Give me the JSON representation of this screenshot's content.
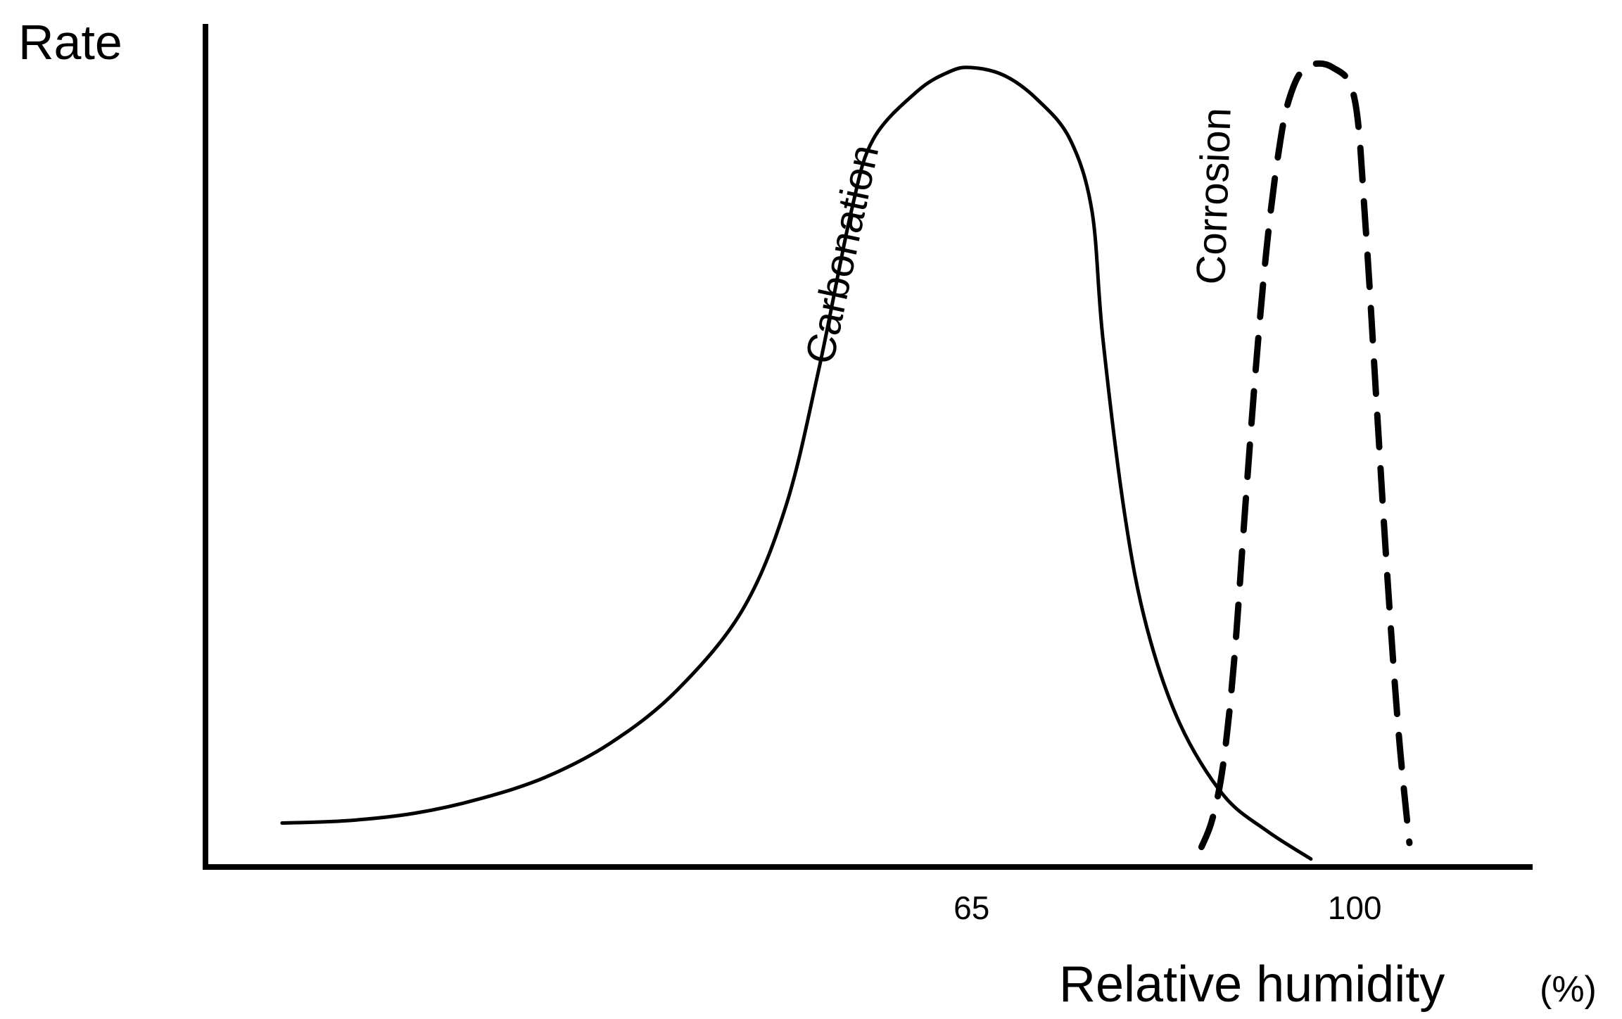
{
  "chart_data": {
    "type": "line",
    "title": "",
    "ylabel": "Rate",
    "xlabel": "Relative humidity",
    "xunit": "(%)",
    "xticks": [
      {
        "value": 65,
        "label": "65"
      },
      {
        "value": 100,
        "label": "100"
      }
    ],
    "xlim": [
      -5,
      116
    ],
    "ylim": [
      0,
      1
    ],
    "grid": false,
    "legend": "none",
    "series": [
      {
        "name": "Carbonation",
        "style": "solid",
        "color": "#000000",
        "points": [
          [
            2,
            0.055
          ],
          [
            8,
            0.058
          ],
          [
            14,
            0.067
          ],
          [
            20,
            0.085
          ],
          [
            26,
            0.112
          ],
          [
            32,
            0.155
          ],
          [
            38,
            0.22
          ],
          [
            44,
            0.32
          ],
          [
            48,
            0.45
          ],
          [
            51,
            0.62
          ],
          [
            54,
            0.82
          ],
          [
            56,
            0.91
          ],
          [
            60,
            0.97
          ],
          [
            63,
            0.995
          ],
          [
            65,
            1.0
          ],
          [
            68,
            0.99
          ],
          [
            71,
            0.96
          ],
          [
            74,
            0.91
          ],
          [
            76,
            0.82
          ],
          [
            77,
            0.66
          ],
          [
            79,
            0.44
          ],
          [
            81,
            0.3
          ],
          [
            84,
            0.18
          ],
          [
            88,
            0.09
          ],
          [
            92,
            0.045
          ],
          [
            96,
            0.01
          ]
        ]
      },
      {
        "name": "Corrosion",
        "style": "dashed",
        "color": "#000000",
        "points": [
          [
            86,
            0.025
          ],
          [
            87,
            0.06
          ],
          [
            88,
            0.13
          ],
          [
            89,
            0.26
          ],
          [
            90,
            0.45
          ],
          [
            91,
            0.63
          ],
          [
            92,
            0.78
          ],
          [
            93,
            0.89
          ],
          [
            94,
            0.96
          ],
          [
            95.5,
            1.0
          ],
          [
            98,
            1.0
          ],
          [
            100,
            0.96
          ],
          [
            101,
            0.8
          ],
          [
            102,
            0.58
          ],
          [
            103,
            0.36
          ],
          [
            104,
            0.17
          ],
          [
            105,
            0.03
          ]
        ]
      }
    ]
  }
}
